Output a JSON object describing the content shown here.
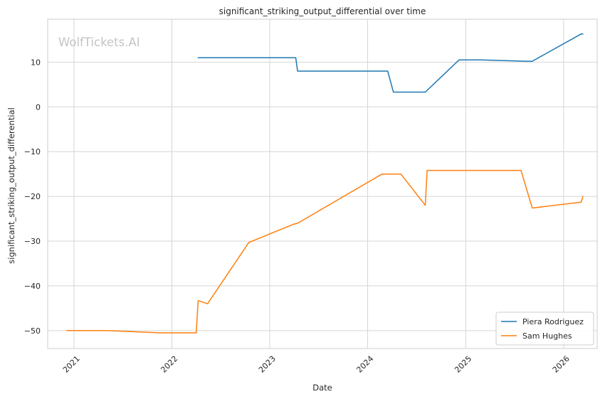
{
  "chart_data": {
    "type": "line",
    "title": "significant_striking_output_differential over time",
    "xlabel": "Date",
    "ylabel": "significant_striking_output_differential",
    "watermark": "WolfTickets.AI",
    "x_tick_labels": [
      "2021",
      "2022",
      "2023",
      "2024",
      "2025",
      "2026"
    ],
    "x_ticks": [
      "2021-01-01",
      "2022-01-01",
      "2023-01-01",
      "2024-01-01",
      "2025-01-01",
      "2026-01-01"
    ],
    "xlim": [
      "2020-09-25",
      "2026-05-06"
    ],
    "y_ticks": [
      10,
      0,
      -10,
      -20,
      -30,
      -40,
      -50
    ],
    "y_tick_labels": [
      "10",
      "0",
      "−10",
      "−20",
      "−30",
      "−40",
      "−50"
    ],
    "ylim": [
      -54,
      19.6
    ],
    "grid": true,
    "legend_position": "lower-right",
    "series": [
      {
        "name": "Piera Rodriguez",
        "color": "#1f77b4",
        "points": [
          [
            "2022-04-09",
            11.0
          ],
          [
            "2023-04-08",
            11.0
          ],
          [
            "2023-04-15",
            8.0
          ],
          [
            "2024-03-16",
            8.0
          ],
          [
            "2024-04-06",
            3.3
          ],
          [
            "2024-08-03",
            3.3
          ],
          [
            "2024-12-07",
            10.5
          ],
          [
            "2025-03-01",
            10.5
          ],
          [
            "2025-08-16",
            10.2
          ],
          [
            "2025-09-06",
            10.2
          ],
          [
            "2026-03-07",
            16.3
          ],
          [
            "2026-03-14",
            16.3
          ]
        ]
      },
      {
        "name": "Sam Hughes",
        "color": "#ff7f0e",
        "points": [
          [
            "2020-12-05",
            -50.0
          ],
          [
            "2021-05-01",
            -50.0
          ],
          [
            "2021-11-20",
            -50.5
          ],
          [
            "2022-04-02",
            -50.5
          ],
          [
            "2022-04-09",
            -43.3
          ],
          [
            "2022-05-14",
            -44.0
          ],
          [
            "2022-10-15",
            -30.3
          ],
          [
            "2023-04-01",
            -26.2
          ],
          [
            "2023-04-15",
            -26.0
          ],
          [
            "2024-02-24",
            -15.0
          ],
          [
            "2024-05-04",
            -15.0
          ],
          [
            "2024-08-03",
            -22.0
          ],
          [
            "2024-08-10",
            -14.2
          ],
          [
            "2025-07-26",
            -14.2
          ],
          [
            "2025-09-06",
            -22.6
          ],
          [
            "2026-03-07",
            -21.3
          ],
          [
            "2026-03-14",
            -20.0
          ]
        ]
      }
    ]
  }
}
